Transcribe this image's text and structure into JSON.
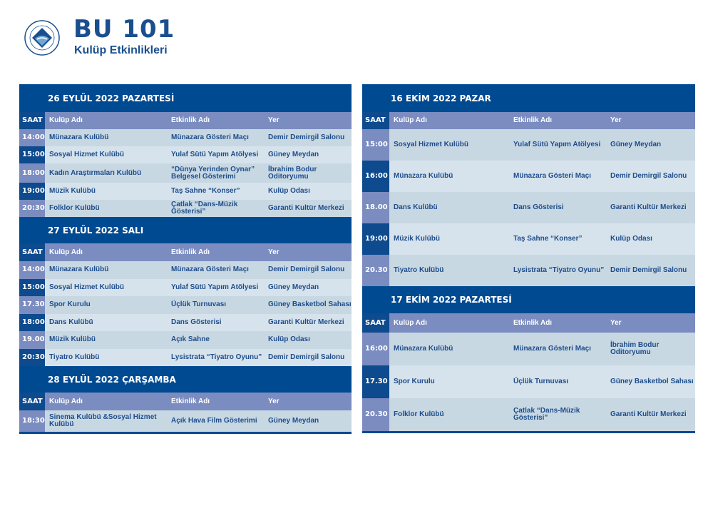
{
  "header": {
    "logo_text": "BOĞAZİÇİ ÜNİVERSİTESİ 1863",
    "title": "BU 101",
    "subtitle": "Kulüp Etkinlikleri"
  },
  "colors": {
    "dark_blue": "#004a92",
    "column_header": "#7b8cc0",
    "row_light": "#c8d8e3",
    "row_lighter": "#d6e3ec",
    "text": "#1e4d8b"
  },
  "columns": {
    "time": "SAAT",
    "club": "Kulüp Adı",
    "event": "Etkinlik Adı",
    "place": "Yer"
  },
  "days": [
    {
      "title": "26 EYLÜL 2022 PAZARTESİ",
      "rows": [
        {
          "time": "14:00",
          "club": "Münazara Kulübü",
          "event": "Münazara Gösteri Maçı",
          "place": "Demir Demirgil Salonu"
        },
        {
          "time": "15:00",
          "club": "Sosyal Hizmet Kulübü",
          "event": "Yulaf Sütü Yapım Atölyesi",
          "place": "Güney Meydan"
        },
        {
          "time": "18:00",
          "club": "Kadın Araştırmaları Kulübü",
          "event": "“Dünya Yerinden Oynar” Belgesel Gösterimi",
          "place": "İbrahim Bodur Oditoryumu"
        },
        {
          "time": "19:00",
          "club": "Müzik Kulübü",
          "event": "Taş Sahne “Konser”",
          "place": "Kulüp Odası"
        },
        {
          "time": "20:30",
          "club": "Folklor Kulübü",
          "event": "Çatlak “Dans-Müzik Gösterisi”",
          "place": "Garanti Kultür Merkezi"
        }
      ]
    },
    {
      "title": "27 EYLÜL 2022 SALI",
      "rows": [
        {
          "time": "14:00",
          "club": "Münazara Kulübü",
          "event": "Münazara Gösteri Maçı",
          "place": "Demir Demirgil Salonu"
        },
        {
          "time": "15:00",
          "club": "Sosyal Hizmet Kulübü",
          "event": "Yulaf Sütü Yapım Atölyesi",
          "place": "Güney Meydan"
        },
        {
          "time": "17.30",
          "club": "Spor Kurulu",
          "event": "Üçlük Turnuvası",
          "place": "Güney Basketbol Sahası"
        },
        {
          "time": "18:00",
          "club": "Dans Kulübü",
          "event": "Dans Gösterisi",
          "place": "Garanti Kultür Merkezi"
        },
        {
          "time": "19.00",
          "club": "Müzik Kulübü",
          "event": "Açık Sahne",
          "place": "Kulüp Odası"
        },
        {
          "time": "20:30",
          "club": "Tiyatro Kulübü",
          "event": "Lysistrata “Tiyatro Oyunu”",
          "place": "Demir Demirgil Salonu"
        }
      ]
    },
    {
      "title": "28 EYLÜL 2022 ÇARŞAMBA",
      "rows": [
        {
          "time": "18:30",
          "club": "Sinema Kulübü &Sosyal Hizmet Kulübü",
          "event": "Açık Hava Film Gösterimi",
          "place": "Güney Meydan"
        }
      ]
    },
    {
      "title": "16 EKİM 2022 PAZAR",
      "rows": [
        {
          "time": "15:00",
          "club": "Sosyal Hizmet Kulübü",
          "event": "Yulaf Sütü Yapım Atölyesi",
          "place": "Güney Meydan"
        },
        {
          "time": "16:00",
          "club": "Münazara Kulübü",
          "event": "Münazara Gösteri Maçı",
          "place": "Demir Demirgil Salonu"
        },
        {
          "time": "18.00",
          "club": "Dans Kulübü",
          "event": "Dans Gösterisi",
          "place": "Garanti Kultür Merkezi"
        },
        {
          "time": "19:00",
          "club": "Müzik Kulübü",
          "event": "Taş Sahne “Konser”",
          "place": "Kulüp Odası"
        },
        {
          "time": "20.30",
          "club": "Tiyatro Kulübü",
          "event": "Lysistrata “Tiyatro Oyunu”",
          "place": "Demir Demirgil Salonu"
        }
      ]
    },
    {
      "title": "17 EKİM 2022 PAZARTESİ",
      "rows": [
        {
          "time": "16:00",
          "club": "Münazara Kulübü",
          "event": "Münazara Gösteri Maçı",
          "place": "İbrahim Bodur Oditoryumu"
        },
        {
          "time": "17.30",
          "club": "Spor Kurulu",
          "event": "Üçlük Turnuvası",
          "place": "Güney Basketbol Sahası"
        },
        {
          "time": "20.30",
          "club": "Folklor Kulübü",
          "event": "Çatlak “Dans-Müzik Gösterisi”",
          "place": "Garanti Kultür Merkezi"
        }
      ]
    }
  ]
}
